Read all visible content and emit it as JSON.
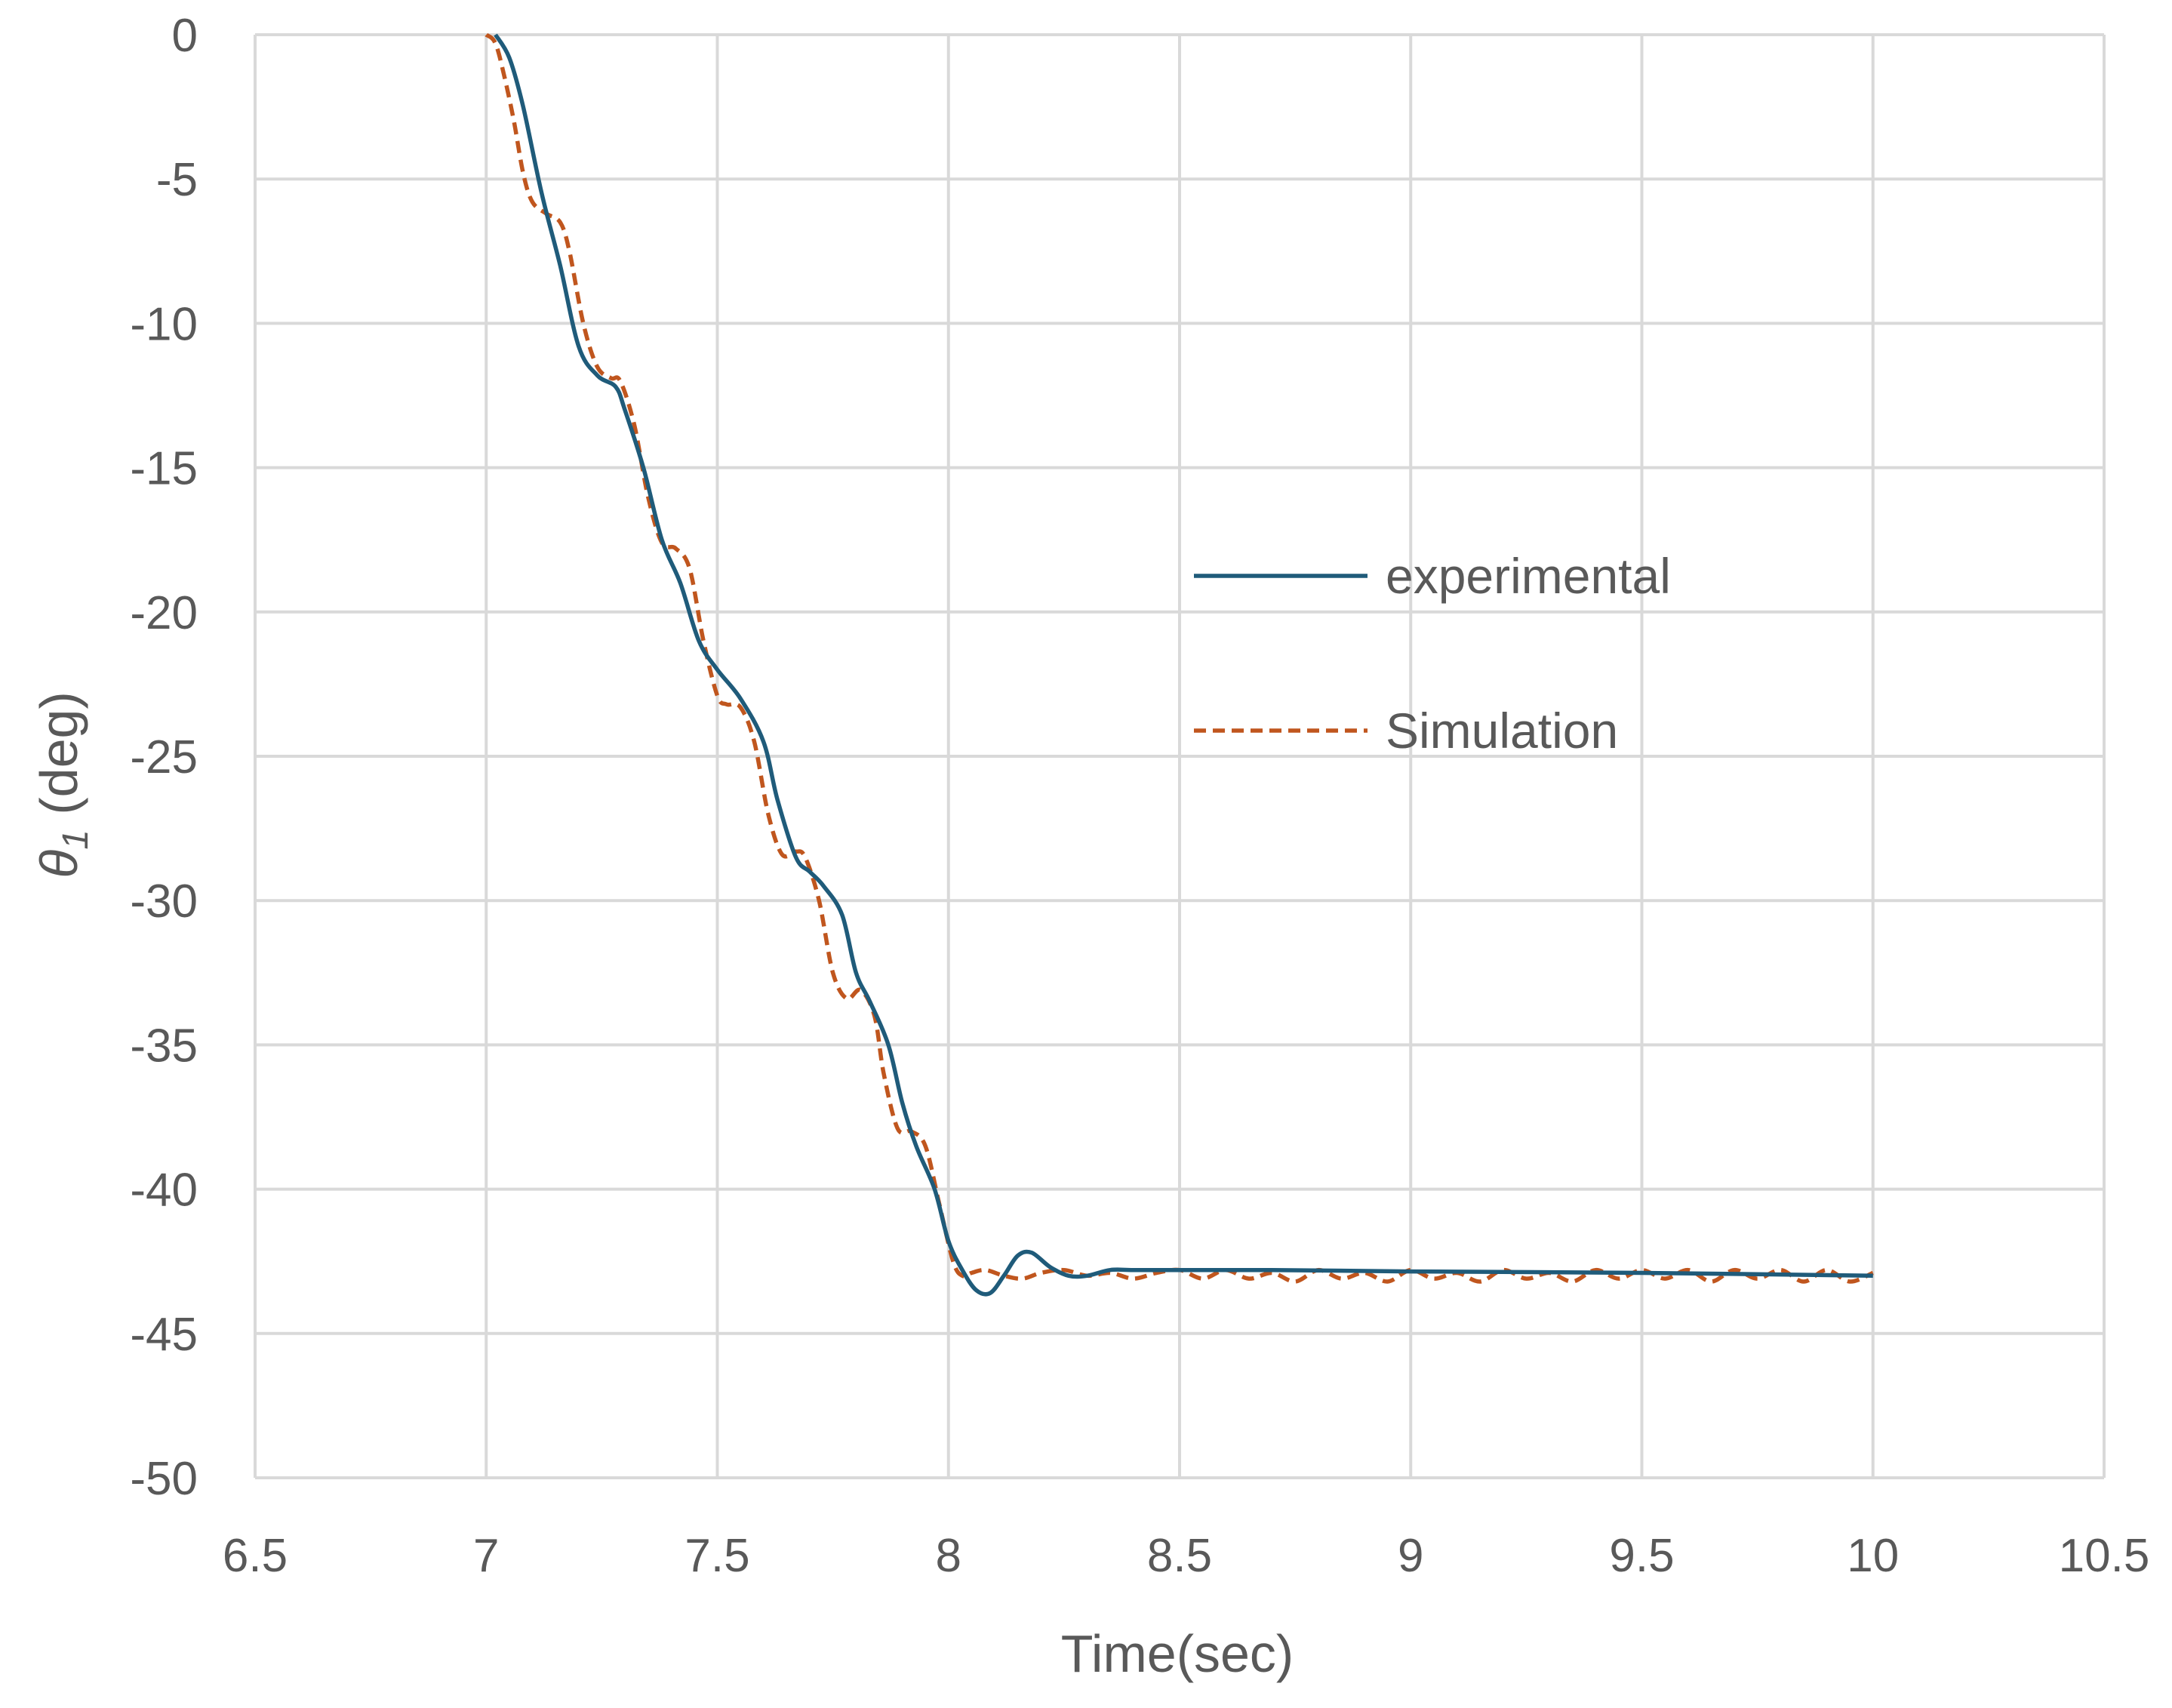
{
  "chart_data": {
    "type": "line",
    "xlabel": "Time(sec)",
    "ylabel": {
      "symbol": "θ",
      "subscript": "1",
      "unit": " (deg)"
    },
    "xlim": [
      6.5,
      10.5
    ],
    "ylim": [
      -50,
      0
    ],
    "x_ticks": [
      "6.5",
      "7",
      "7.5",
      "8",
      "8.5",
      "9",
      "9.5",
      "10",
      "10.5"
    ],
    "y_ticks": [
      "0",
      "-5",
      "-10",
      "-15",
      "-20",
      "-25",
      "-30",
      "-35",
      "-40",
      "-45",
      "-50"
    ],
    "grid": true,
    "legend_position": "right",
    "series": [
      {
        "name": "experimental",
        "color": "#1f5b7a",
        "style": "solid",
        "x": [
          7.02,
          7.05,
          7.08,
          7.12,
          7.16,
          7.2,
          7.24,
          7.28,
          7.3,
          7.34,
          7.38,
          7.42,
          7.46,
          7.5,
          7.55,
          7.6,
          7.63,
          7.67,
          7.7,
          7.73,
          7.77,
          7.8,
          7.83,
          7.87,
          7.9,
          7.93,
          7.97,
          8.0,
          8.03,
          8.06,
          8.09,
          8.12,
          8.15,
          8.18,
          8.22,
          8.26,
          8.3,
          8.35,
          8.4,
          8.5,
          8.7,
          9.0,
          9.5,
          10.0
        ],
        "y": [
          0.0,
          -0.8,
          -2.5,
          -5.5,
          -8.0,
          -10.8,
          -11.8,
          -12.2,
          -13.0,
          -15.0,
          -17.5,
          -19.0,
          -21.0,
          -22.0,
          -23.0,
          -24.5,
          -26.5,
          -28.5,
          -29.0,
          -29.5,
          -30.5,
          -32.5,
          -33.5,
          -35.0,
          -37.0,
          -38.5,
          -40.0,
          -41.8,
          -42.8,
          -43.5,
          -43.6,
          -43.0,
          -42.3,
          -42.2,
          -42.7,
          -43.0,
          -43.0,
          -42.8,
          -42.8,
          -42.8,
          -42.8,
          -42.85,
          -42.9,
          -43.0
        ]
      },
      {
        "name": "Simulation",
        "color": "#c0561e",
        "style": "dashed",
        "x": [
          7.0,
          7.02,
          7.04,
          7.06,
          7.08,
          7.1,
          7.13,
          7.16,
          7.18,
          7.21,
          7.24,
          7.27,
          7.29,
          7.32,
          7.35,
          7.38,
          7.41,
          7.44,
          7.47,
          7.5,
          7.52,
          7.55,
          7.58,
          7.61,
          7.64,
          7.67,
          7.69,
          7.72,
          7.75,
          7.78,
          7.81,
          7.84,
          7.86,
          7.89,
          7.92,
          7.95,
          7.98,
          8.01,
          8.03,
          8.05,
          8.08,
          8.12,
          8.16,
          8.2,
          8.25,
          8.3,
          8.35,
          8.4,
          8.45,
          8.5,
          8.55,
          8.6,
          8.65,
          8.7,
          8.75,
          8.8,
          8.85,
          8.9,
          8.95,
          9.0,
          9.05,
          9.1,
          9.15,
          9.2,
          9.25,
          9.3,
          9.35,
          9.4,
          9.45,
          9.5,
          9.55,
          9.6,
          9.65,
          9.7,
          9.75,
          9.8,
          9.85,
          9.9,
          9.95,
          10.0
        ],
        "y": [
          0.0,
          -0.3,
          -1.5,
          -3.0,
          -4.8,
          -5.8,
          -6.2,
          -6.5,
          -7.5,
          -10.0,
          -11.5,
          -11.9,
          -12.0,
          -13.5,
          -16.0,
          -17.6,
          -17.8,
          -18.5,
          -21.0,
          -22.9,
          -23.2,
          -23.3,
          -24.5,
          -27.0,
          -28.4,
          -28.3,
          -28.5,
          -30.0,
          -32.5,
          -33.4,
          -33.1,
          -34.0,
          -36.0,
          -37.9,
          -38.0,
          -38.5,
          -40.5,
          -42.5,
          -43.0,
          -42.9,
          -42.8,
          -43.0,
          -43.1,
          -42.9,
          -42.8,
          -43.0,
          -42.9,
          -43.1,
          -42.9,
          -42.8,
          -43.1,
          -42.8,
          -43.1,
          -42.9,
          -43.2,
          -42.8,
          -43.1,
          -42.9,
          -43.2,
          -42.8,
          -43.1,
          -42.9,
          -43.2,
          -42.8,
          -43.1,
          -42.9,
          -43.2,
          -42.8,
          -43.1,
          -42.8,
          -43.1,
          -42.8,
          -43.2,
          -42.8,
          -43.1,
          -42.8,
          -43.2,
          -42.8,
          -43.2,
          -42.9
        ]
      }
    ]
  }
}
